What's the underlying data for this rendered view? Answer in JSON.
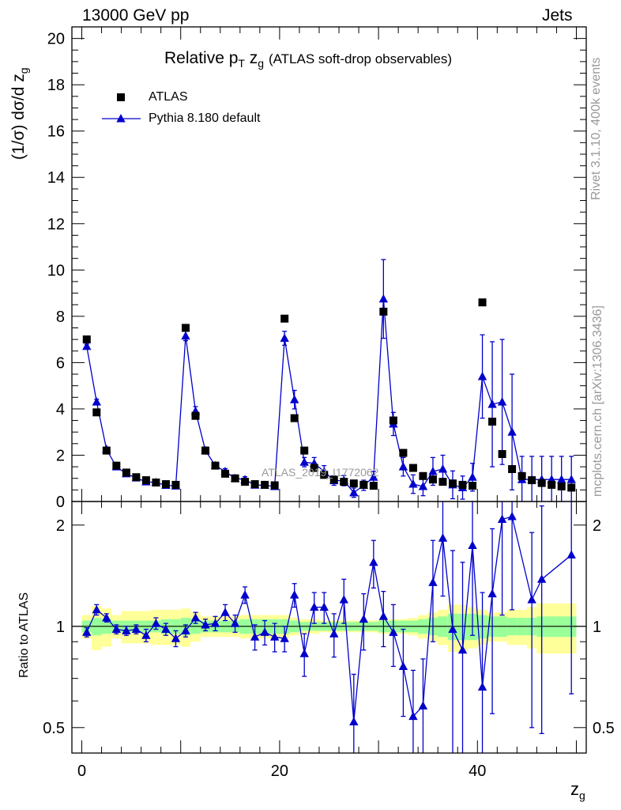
{
  "header": {
    "left": "13000 GeV pp",
    "right": "Jets"
  },
  "side_texts": {
    "rivet": "Rivet 3.1.10,  400k events",
    "mcplots": "mcplots.cern.ch [arXiv:1306.3436]"
  },
  "watermark": "ATLAS_2019_I1772062",
  "colors": {
    "mc": "#0000cc",
    "data": "#000000",
    "band_inner": "#99ff99",
    "band_outer": "#ffff99"
  },
  "chart_data": [
    {
      "type": "scatter",
      "panel": "main",
      "title": "Relative p_T z_g (ATLAS soft-drop observables)",
      "ylabel": "(1/σ) dσ/d z_g",
      "xlabel": "z_g",
      "xlim": [
        -1,
        51
      ],
      "ylim": [
        0,
        20.5
      ],
      "yticks": [
        0,
        2,
        4,
        6,
        8,
        10,
        12,
        14,
        16,
        18,
        20
      ],
      "legend_position": "top-left",
      "x": [
        0.5,
        1.5,
        2.5,
        3.5,
        4.5,
        5.5,
        6.5,
        7.5,
        8.5,
        9.5,
        10.5,
        11.5,
        12.5,
        13.5,
        14.5,
        15.5,
        16.5,
        17.5,
        18.5,
        19.5,
        20.5,
        21.5,
        22.5,
        23.5,
        24.5,
        25.5,
        26.5,
        27.5,
        28.5,
        29.5,
        30.5,
        31.5,
        32.5,
        33.5,
        34.5,
        35.5,
        36.5,
        37.5,
        38.5,
        39.5,
        40.5,
        41.5,
        42.5,
        43.5,
        44.5,
        45.5,
        46.5,
        47.5,
        48.5,
        49.5
      ],
      "series": [
        {
          "name": "ATLAS",
          "marker": "square",
          "values": [
            7.0,
            3.85,
            2.2,
            1.55,
            1.25,
            1.05,
            0.92,
            0.82,
            0.75,
            0.72,
            7.5,
            3.7,
            2.2,
            1.55,
            1.2,
            1.0,
            0.85,
            0.75,
            0.72,
            0.7,
            7.9,
            3.6,
            2.2,
            1.45,
            1.15,
            0.95,
            0.85,
            0.78,
            0.72,
            0.68,
            8.2,
            3.5,
            2.1,
            1.45,
            1.1,
            0.95,
            0.85,
            0.78,
            0.72,
            0.68,
            8.6,
            3.45,
            2.05,
            1.4,
            1.1,
            0.92,
            0.8,
            0.72,
            0.65,
            0.6
          ]
        },
        {
          "name": "Pythia 8.180 default",
          "marker": "triangle",
          "values": [
            6.7,
            4.3,
            2.25,
            1.5,
            1.2,
            1.02,
            0.85,
            0.82,
            0.7,
            0.67,
            7.15,
            3.9,
            2.2,
            1.55,
            1.3,
            1.0,
            0.95,
            0.71,
            0.7,
            0.65,
            7.05,
            4.4,
            1.7,
            1.65,
            1.3,
            0.9,
            0.9,
            0.38,
            0.7,
            1.05,
            8.75,
            3.35,
            1.5,
            0.75,
            0.65,
            1.3,
            1.4,
            0.72,
            0.6,
            1.05,
            5.4,
            4.2,
            4.3,
            3.0,
            0.95,
            0.95,
            0.95,
            0.95,
            0.95,
            0.95
          ],
          "errors": [
            0.1,
            0.12,
            0.1,
            0.08,
            0.07,
            0.06,
            0.06,
            0.06,
            0.06,
            0.06,
            0.2,
            0.2,
            0.15,
            0.12,
            0.12,
            0.12,
            0.12,
            0.1,
            0.1,
            0.1,
            0.3,
            0.4,
            0.2,
            0.25,
            0.25,
            0.2,
            0.22,
            0.2,
            0.22,
            0.25,
            1.7,
            0.5,
            0.4,
            0.4,
            0.4,
            0.6,
            0.6,
            0.6,
            0.5,
            0.6,
            1.8,
            2.7,
            2.7,
            2.5,
            1.0,
            1.0,
            1.0,
            1.0,
            1.0,
            1.0
          ]
        }
      ]
    },
    {
      "type": "scatter",
      "panel": "ratio",
      "ylabel": "Ratio to ATLAS",
      "xlabel": "z_g",
      "xlim": [
        -1,
        51
      ],
      "ylim": [
        0.42,
        2.35
      ],
      "yscale": "log",
      "yticks": [
        0.5,
        1,
        2
      ],
      "xticks": [
        0,
        20,
        40
      ],
      "x": [
        0.5,
        1.5,
        2.5,
        3.5,
        4.5,
        5.5,
        6.5,
        7.5,
        8.5,
        9.5,
        10.5,
        11.5,
        12.5,
        13.5,
        14.5,
        15.5,
        16.5,
        17.5,
        18.5,
        19.5,
        20.5,
        21.5,
        22.5,
        23.5,
        24.5,
        25.5,
        26.5,
        27.5,
        28.5,
        29.5,
        30.5,
        31.5,
        32.5,
        33.5,
        34.5,
        35.5,
        36.5,
        37.5,
        38.5,
        39.5,
        40.5,
        41.5,
        42.5,
        43.5,
        44.5,
        45.5,
        46.5,
        47.5,
        48.5,
        49.5
      ],
      "band_inner_halfwidth": [
        0.04,
        0.06,
        0.05,
        0.04,
        0.04,
        0.04,
        0.04,
        0.04,
        0.05,
        0.05,
        0.06,
        0.05,
        0.04,
        0.04,
        0.04,
        0.04,
        0.05,
        0.05,
        0.05,
        0.05,
        0.05,
        0.04,
        0.03,
        0.03,
        0.03,
        0.03,
        0.03,
        0.03,
        0.03,
        0.03,
        0.04,
        0.04,
        0.04,
        0.04,
        0.05,
        0.06,
        0.07,
        0.09,
        0.09,
        0.09,
        0.08,
        0.07,
        0.07,
        0.06,
        0.06,
        0.06,
        0.07,
        0.07,
        0.07,
        0.07
      ],
      "band_outer_halfwidth": [
        0.08,
        0.15,
        0.13,
        0.08,
        0.11,
        0.11,
        0.11,
        0.12,
        0.12,
        0.12,
        0.13,
        0.1,
        0.07,
        0.07,
        0.07,
        0.07,
        0.08,
        0.08,
        0.08,
        0.08,
        0.08,
        0.06,
        0.05,
        0.05,
        0.04,
        0.04,
        0.04,
        0.04,
        0.04,
        0.04,
        0.05,
        0.05,
        0.05,
        0.06,
        0.08,
        0.1,
        0.12,
        0.16,
        0.16,
        0.14,
        0.12,
        0.1,
        0.1,
        0.12,
        0.12,
        0.14,
        0.17,
        0.17,
        0.17,
        0.17
      ],
      "series": [
        {
          "name": "Pythia 8.180 default",
          "values": [
            0.96,
            1.12,
            1.06,
            0.98,
            0.97,
            0.98,
            0.94,
            1.02,
            0.98,
            0.92,
            0.97,
            1.06,
            1.01,
            1.02,
            1.1,
            1.02,
            1.24,
            0.93,
            0.96,
            0.93,
            0.92,
            1.24,
            0.83,
            1.14,
            1.14,
            0.95,
            1.2,
            0.52,
            1.05,
            1.55,
            1.07,
            0.96,
            0.76,
            0.54,
            0.58,
            1.35,
            1.83,
            0.98,
            0.85,
            1.74,
            0.66,
            1.25,
            2.08,
            2.12,
            1.2,
            1.38,
            1.63
          ],
          "value_x": [
            0.5,
            1.5,
            2.5,
            3.5,
            4.5,
            5.5,
            6.5,
            7.5,
            8.5,
            9.5,
            10.5,
            11.5,
            12.5,
            13.5,
            14.5,
            15.5,
            16.5,
            17.5,
            18.5,
            19.5,
            20.5,
            21.5,
            22.5,
            23.5,
            24.5,
            25.5,
            26.5,
            27.5,
            28.5,
            29.5,
            30.5,
            31.5,
            32.5,
            33.5,
            34.5,
            35.5,
            36.5,
            37.5,
            38.5,
            39.5,
            40.5,
            41.5,
            42.5,
            43.5,
            45.5,
            46.5,
            49.5
          ],
          "errors": [
            0.03,
            0.04,
            0.03,
            0.03,
            0.03,
            0.03,
            0.04,
            0.04,
            0.04,
            0.05,
            0.04,
            0.04,
            0.04,
            0.05,
            0.06,
            0.06,
            0.07,
            0.08,
            0.08,
            0.09,
            0.08,
            0.1,
            0.12,
            0.12,
            0.12,
            0.14,
            0.18,
            0.2,
            0.2,
            0.25,
            0.2,
            0.2,
            0.22,
            0.2,
            0.22,
            0.45,
            0.6,
            0.7,
            0.7,
            0.8,
            0.6,
            0.7,
            1.0,
            1.0,
            0.7,
            0.9,
            1.0
          ]
        }
      ]
    }
  ]
}
